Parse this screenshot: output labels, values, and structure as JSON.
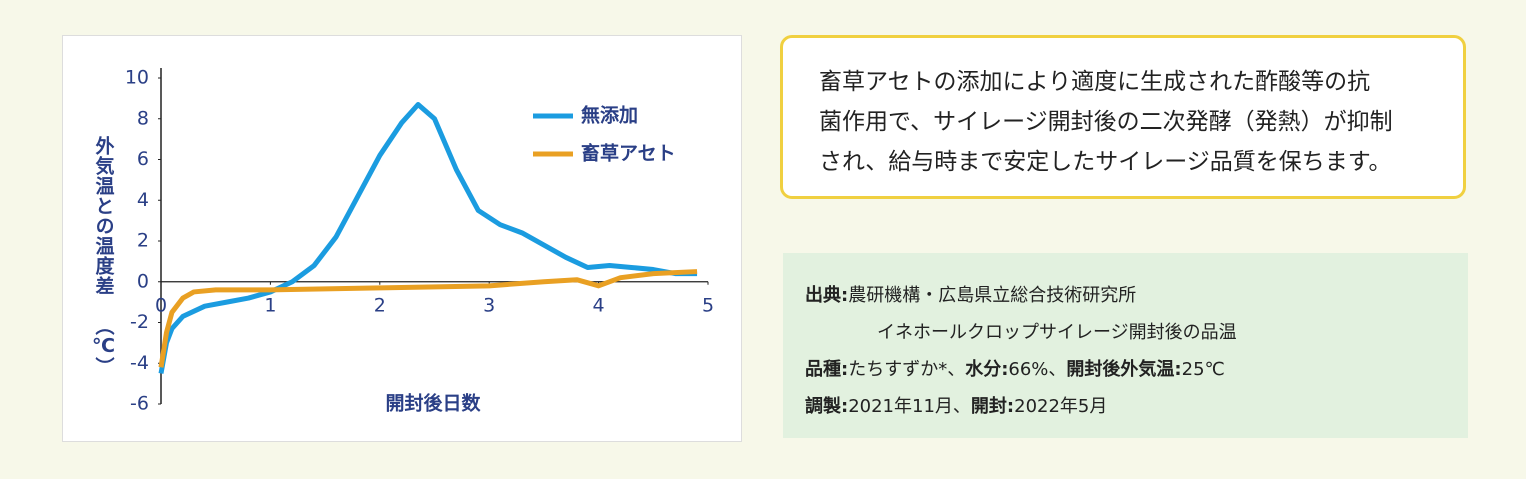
{
  "chart_data": {
    "type": "line",
    "xlabel": "開封後日数",
    "ylabel": "外気温との温度差",
    "ylabel_unit": "（℃）",
    "xlim": [
      0,
      5
    ],
    "xticks": [
      0,
      1,
      2,
      3,
      4,
      5
    ],
    "ylim": [
      -6,
      10
    ],
    "yticks": [
      -6,
      -4,
      -2,
      0,
      2,
      4,
      6,
      8,
      10
    ],
    "legend": "upper right",
    "series": [
      {
        "name": "無添加",
        "color": "#1b9ce0",
        "x": [
          0,
          0.05,
          0.1,
          0.2,
          0.4,
          0.6,
          0.8,
          1.0,
          1.2,
          1.4,
          1.6,
          1.8,
          2.0,
          2.2,
          2.35,
          2.5,
          2.7,
          2.9,
          3.1,
          3.3,
          3.5,
          3.7,
          3.9,
          4.1,
          4.3,
          4.5,
          4.7,
          4.9
        ],
        "values": [
          -4.5,
          -3,
          -2.3,
          -1.7,
          -1.2,
          -1.0,
          -0.8,
          -0.5,
          0,
          0.8,
          2.2,
          4.2,
          6.2,
          7.8,
          8.7,
          8.0,
          5.5,
          3.5,
          2.8,
          2.4,
          1.8,
          1.2,
          0.7,
          0.8,
          0.7,
          0.6,
          0.4,
          0.4
        ]
      },
      {
        "name": "畜草アセト",
        "color": "#e9a023",
        "x": [
          0,
          0.05,
          0.1,
          0.2,
          0.3,
          0.5,
          1.0,
          2.0,
          3.0,
          3.5,
          3.8,
          4.0,
          4.2,
          4.5,
          4.9
        ],
        "values": [
          -4.2,
          -2.5,
          -1.5,
          -0.8,
          -0.5,
          -0.4,
          -0.4,
          -0.3,
          -0.2,
          0,
          0.1,
          -0.2,
          0.2,
          0.4,
          0.5
        ]
      }
    ]
  },
  "note": {
    "lines": [
      "畜草アセトの添加により適度に生成された酢酸等の抗",
      "菌作用で、サイレージ開封後の二次発酵（発熱）が抑制",
      "され、給与時まで安定したサイレージ品質を保ちます。"
    ]
  },
  "source": {
    "rows": [
      [
        {
          "label": "出典:",
          "text": "農研機構・広島県立総合技術研究所"
        }
      ],
      [
        {
          "text": "イネホールクロップサイレージ開封後の品温"
        }
      ],
      [
        {
          "label": "品種:",
          "text": "たちすずか*、"
        },
        {
          "label": "水分:",
          "text": "66%、"
        },
        {
          "label": "開封後外気温:",
          "text": "25℃"
        }
      ],
      [
        {
          "label": "調製:",
          "text": "2021年11月、"
        },
        {
          "label": "開封:",
          "text": "2022年5月"
        }
      ]
    ]
  }
}
